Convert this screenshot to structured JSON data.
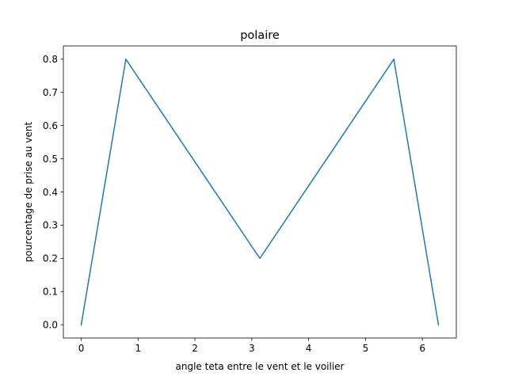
{
  "chart_data": {
    "type": "line",
    "title": "polaire",
    "xlabel": "angle teta entre le vent et le voilier",
    "ylabel": "pourcentage de prise au vent",
    "xlim": [
      -0.314,
      6.597
    ],
    "ylim": [
      -0.04,
      0.84
    ],
    "xticks": [
      0,
      1,
      2,
      3,
      4,
      5,
      6
    ],
    "yticks": [
      0.0,
      0.1,
      0.2,
      0.3,
      0.4,
      0.5,
      0.6,
      0.7,
      0.8
    ],
    "xtick_labels": [
      "0",
      "1",
      "2",
      "3",
      "4",
      "5",
      "6"
    ],
    "ytick_labels": [
      "0.0",
      "0.1",
      "0.2",
      "0.3",
      "0.4",
      "0.5",
      "0.6",
      "0.7",
      "0.8"
    ],
    "grid": false,
    "series": [
      {
        "color": "#1f77b4",
        "x": [
          0,
          0.785,
          3.1416,
          5.498,
          6.2832
        ],
        "y": [
          0.0,
          0.8,
          0.2,
          0.8,
          0.0
        ]
      }
    ]
  }
}
